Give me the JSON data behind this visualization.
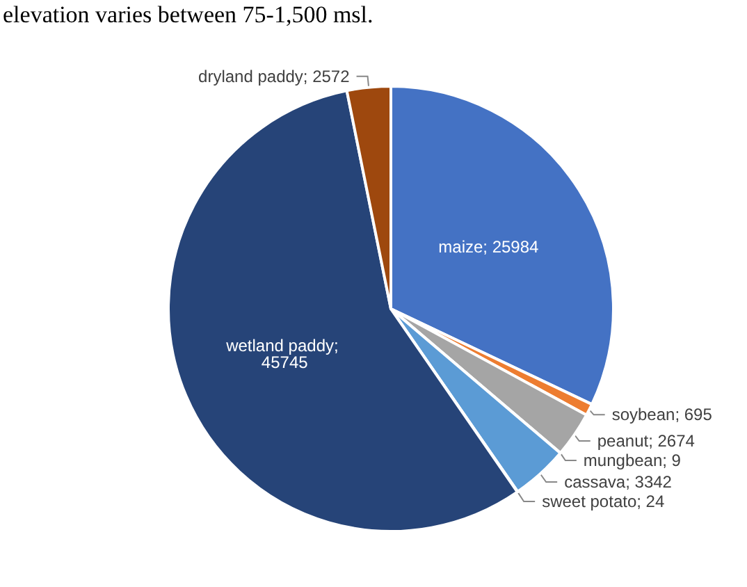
{
  "chart_data": {
    "type": "pie",
    "annotations": [
      "elevation varies between 75-1,500 msl."
    ],
    "categories": [
      "maize",
      "soybean",
      "peanut",
      "mungbean",
      "cassava",
      "sweet potato",
      "wetland paddy",
      "dryland paddy"
    ],
    "values": [
      25984,
      695,
      2674,
      9,
      3342,
      24,
      45745,
      2572
    ],
    "colors": [
      "#4472c4",
      "#ed7d31",
      "#a5a5a5",
      "#ffc000",
      "#5b9bd5",
      "#70ad47",
      "#264478",
      "#9e480e"
    ],
    "value_labels": [
      "; 25984",
      "; 695",
      "; 2674",
      "; 9",
      "; 3342",
      "; 24",
      "; 45745",
      "; 2572"
    ],
    "legend": false
  }
}
